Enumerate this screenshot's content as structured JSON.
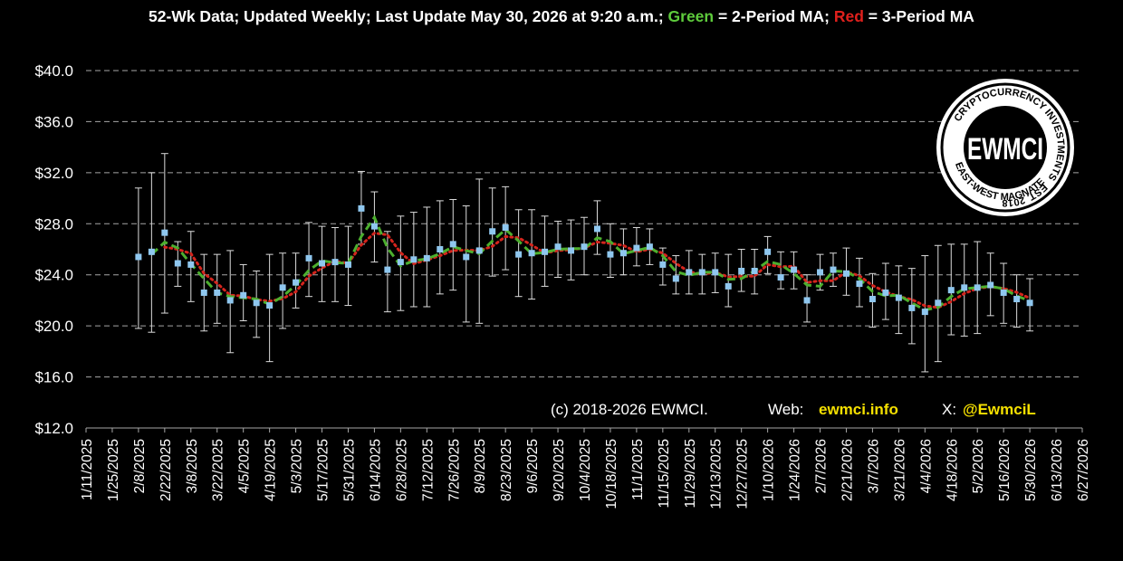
{
  "header": {
    "part1": "52-Wk Data; Updated Weekly; Last Update May 30, 2026 at 9:20 a.m.; ",
    "green": "Green",
    "part2": " = 2-Period MA; ",
    "red": "Red",
    "part3": " = 3-Period MA"
  },
  "credits": {
    "copyright": "(c) 2018-2026 EWMCI.",
    "web_label": "Web:",
    "web_value": "ewmci.info",
    "x_label": "X:",
    "x_value": "@EwmciL"
  },
  "logo": {
    "center": "EWMCI",
    "ring_top": "CRYPTOCURRENCY INVESTMENTS",
    "ring_est": "EST. 2018",
    "ring_bottom": "EAST-WEST MAGNATE"
  },
  "colors": {
    "background": "#000000",
    "grid": "#a6a6a6",
    "marker": "#8fc7ef",
    "ma2": "#4caf2e",
    "ma3": "#d5251d",
    "credit_accent": "#f5e000"
  },
  "chart_data": {
    "type": "scatter",
    "title": "52-Wk Data; Updated Weekly; Last Update May 30, 2026 at 9:20 a.m.; Green = 2-Period MA; Red = 3-Period MA",
    "x_type": "date",
    "xlim": [
      "2025-01-11",
      "2026-06-27"
    ],
    "x_tick_labels": [
      "1/11/2025",
      "1/25/2025",
      "2/8/2025",
      "2/22/2025",
      "3/8/2025",
      "3/22/2025",
      "4/5/2025",
      "4/19/2025",
      "5/3/2025",
      "5/17/2025",
      "5/31/2025",
      "6/14/2025",
      "6/28/2025",
      "7/12/2025",
      "7/26/2025",
      "8/9/2025",
      "8/23/2025",
      "9/6/2025",
      "9/20/2025",
      "10/4/2025",
      "10/18/2025",
      "11/1/2025",
      "11/15/2025",
      "11/29/2025",
      "12/13/2025",
      "12/27/2025",
      "1/10/2026",
      "1/24/2026",
      "2/7/2026",
      "2/21/2026",
      "3/7/2026",
      "3/21/2026",
      "4/4/2026",
      "4/18/2026",
      "5/2/2026",
      "5/16/2026",
      "5/30/2026",
      "6/13/2026",
      "6/27/2026"
    ],
    "ylim": [
      12,
      40
    ],
    "y_tick_labels": [
      "$12.0",
      "$16.0",
      "$20.0",
      "$24.0",
      "$28.0",
      "$32.0",
      "$36.0",
      "$40.0"
    ],
    "grid": "horizontal dashed",
    "legend": "none",
    "series": [
      {
        "start_date": "2025-02-08",
        "step_days": 7,
        "values": [
          25.4,
          25.8,
          27.3,
          24.9,
          24.8,
          22.6,
          22.6,
          22.0,
          22.4,
          21.8,
          21.6,
          23.0,
          23.4,
          25.3,
          24.9,
          25.0,
          24.8,
          29.2,
          27.8,
          24.4,
          25.0,
          25.2,
          25.3,
          26.0,
          26.4,
          25.4,
          25.9,
          27.4,
          27.7,
          25.6,
          25.7,
          25.8,
          26.2,
          25.9,
          26.2,
          27.6,
          25.6,
          25.7,
          26.1,
          26.2,
          24.8,
          23.7,
          24.2,
          24.2,
          24.2,
          23.1,
          24.3,
          24.3,
          25.8,
          23.8,
          24.4,
          22.0,
          24.2,
          24.4,
          24.1,
          23.3,
          22.1,
          22.6,
          22.2,
          21.4,
          21.1,
          21.8,
          22.8,
          23.0,
          23.0,
          23.2,
          22.6,
          22.1,
          21.8
        ],
        "high": [
          30.8,
          32.0,
          33.5,
          26.6,
          27.4,
          25.6,
          25.6,
          25.9,
          24.8,
          24.3,
          25.6,
          25.7,
          25.7,
          28.1,
          27.8,
          27.7,
          27.8,
          32.1,
          30.5,
          27.4,
          28.6,
          28.9,
          29.3,
          29.8,
          29.9,
          29.4,
          31.5,
          30.8,
          30.9,
          29.1,
          29.1,
          28.6,
          28.2,
          28.3,
          28.5,
          29.8,
          28.0,
          27.6,
          27.7,
          27.6,
          26.1,
          25.5,
          25.9,
          25.6,
          25.7,
          25.6,
          26.0,
          26.0,
          27.0,
          25.8,
          25.8,
          24.0,
          25.6,
          25.7,
          26.1,
          25.3,
          24.1,
          24.9,
          24.7,
          24.5,
          25.5,
          26.3,
          26.4,
          26.4,
          26.6,
          25.7,
          24.9,
          24.0,
          23.7
        ],
        "low": [
          19.8,
          19.5,
          21.0,
          23.1,
          21.9,
          19.6,
          20.2,
          17.9,
          20.4,
          19.1,
          17.2,
          19.8,
          21.4,
          22.3,
          21.9,
          21.9,
          21.6,
          26.4,
          25.0,
          21.1,
          21.2,
          21.5,
          21.5,
          22.5,
          22.8,
          20.3,
          20.2,
          23.9,
          24.4,
          22.3,
          22.1,
          23.1,
          23.8,
          23.6,
          24.0,
          25.6,
          23.8,
          24.0,
          24.7,
          24.8,
          23.2,
          22.5,
          22.5,
          22.5,
          22.6,
          21.5,
          22.7,
          22.5,
          24.1,
          22.9,
          22.9,
          20.3,
          22.8,
          23.1,
          22.4,
          21.5,
          19.9,
          20.5,
          19.4,
          18.6,
          16.4,
          17.2,
          19.3,
          19.2,
          19.4,
          20.8,
          20.2,
          19.9,
          19.6
        ]
      }
    ]
  }
}
